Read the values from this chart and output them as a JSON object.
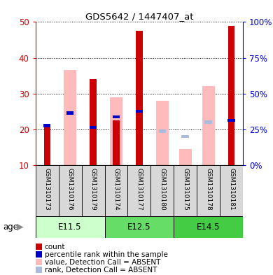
{
  "title": "GDS5642 / 1447407_at",
  "samples": [
    "GSM1310173",
    "GSM1310176",
    "GSM1310179",
    "GSM1310174",
    "GSM1310177",
    "GSM1310180",
    "GSM1310175",
    "GSM1310178",
    "GSM1310181"
  ],
  "age_groups": [
    {
      "label": "E11.5",
      "start": 0,
      "end": 3,
      "color": "#ccffcc"
    },
    {
      "label": "E12.5",
      "start": 3,
      "end": 6,
      "color": "#66dd66"
    },
    {
      "label": "E14.5",
      "start": 6,
      "end": 9,
      "color": "#44cc44"
    }
  ],
  "count_values": [
    21.0,
    null,
    34.0,
    22.5,
    47.5,
    null,
    null,
    null,
    49.0
  ],
  "percentile_values": [
    21.0,
    24.5,
    20.5,
    23.5,
    25.0,
    null,
    null,
    22.0,
    22.5
  ],
  "pink_bar_top": [
    null,
    36.5,
    null,
    29.0,
    null,
    28.0,
    14.5,
    32.0,
    null
  ],
  "light_blue_values": [
    null,
    null,
    null,
    null,
    null,
    19.5,
    18.0,
    22.0,
    null
  ],
  "ymin": 10,
  "ylim": [
    10,
    50
  ],
  "y2lim": [
    0,
    100
  ],
  "yticks": [
    10,
    20,
    30,
    40,
    50
  ],
  "y2ticks": [
    0,
    25,
    50,
    75,
    100
  ],
  "bar_width": 0.55,
  "count_bar_width": 0.28,
  "count_color": "#cc0000",
  "percentile_color": "#0000cc",
  "pink_color": "#ffbbbb",
  "light_blue_color": "#aabbdd",
  "sample_bg": "#d8d8d8",
  "legend_items": [
    {
      "color": "#cc0000",
      "label": "count"
    },
    {
      "color": "#0000cc",
      "label": "percentile rank within the sample"
    },
    {
      "color": "#ffbbbb",
      "label": "value, Detection Call = ABSENT"
    },
    {
      "color": "#aabbdd",
      "label": "rank, Detection Call = ABSENT"
    }
  ]
}
